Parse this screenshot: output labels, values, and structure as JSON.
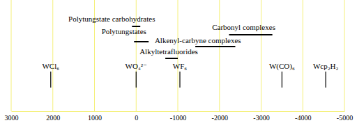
{
  "chart_data": {
    "type": "shift_scale",
    "xlim": [
      3000,
      -5000
    ],
    "xticks": [
      3000,
      2000,
      1000,
      0,
      -1000,
      -2000,
      -3000,
      -4000,
      -5000
    ],
    "grid": true,
    "ranges": [
      {
        "name": "Polytungstate carbohydrates",
        "values": [
          100,
          -100
        ]
      },
      {
        "name": "Polytungstates",
        "values": [
          50,
          -300
        ]
      },
      {
        "name": "Carbonyl complexes",
        "values": [
          -2230,
          -3270
        ]
      },
      {
        "name": "Alkenyl-carbyne complexes",
        "values": [
          -1420,
          -2380
        ]
      },
      {
        "name": "Alkyltetrafluorides",
        "values": [
          -700,
          -1000
        ]
      }
    ],
    "compounds": [
      {
        "name": "WCl₆",
        "value": 2050
      },
      {
        "name": "WO₄²⁻",
        "value": 0
      },
      {
        "name": "WF₆",
        "value": -1050
      },
      {
        "name": "W(CO)₆",
        "value": -3500
      },
      {
        "name": "Wcp₂H₂",
        "value": -4550
      }
    ]
  }
}
